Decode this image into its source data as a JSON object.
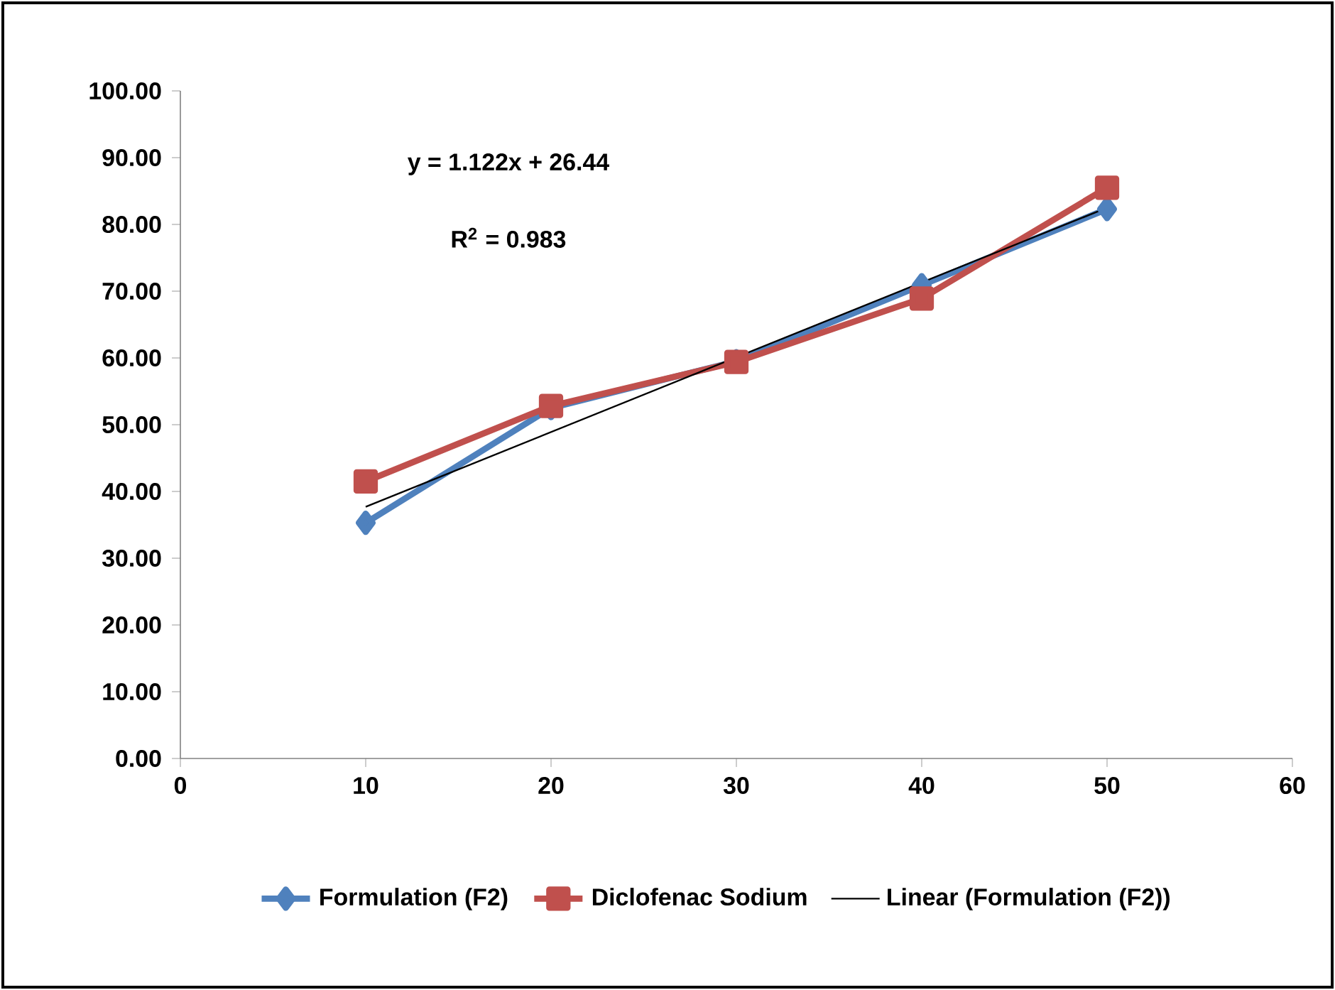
{
  "chart_data": {
    "type": "line",
    "xlim": [
      0,
      60
    ],
    "xticks": [
      0,
      10,
      20,
      30,
      40,
      50,
      60
    ],
    "ylim": [
      0,
      100
    ],
    "yticks": [
      {
        "value": 0,
        "label": "0.00"
      },
      {
        "value": 10,
        "label": "10.00"
      },
      {
        "value": 20,
        "label": "20.00"
      },
      {
        "value": 30,
        "label": "30.00"
      },
      {
        "value": 40,
        "label": "40.00"
      },
      {
        "value": 50,
        "label": "50.00"
      },
      {
        "value": 60,
        "label": "60.00"
      },
      {
        "value": 70,
        "label": "70.00"
      },
      {
        "value": 80,
        "label": "80.00"
      },
      {
        "value": 90,
        "label": "90.00"
      },
      {
        "value": 100,
        "label": "100.00"
      }
    ],
    "x": [
      10,
      20,
      30,
      40,
      50
    ],
    "series": [
      {
        "name": "Formulation (F2)",
        "color": "#4f81bd",
        "marker": "diamond",
        "values": [
          35.3,
          52.5,
          59.5,
          70.9,
          82.3
        ]
      },
      {
        "name": "Diclofenac Sodium",
        "color": "#c0504d",
        "marker": "square",
        "values": [
          41.5,
          52.8,
          59.4,
          68.9,
          85.5
        ]
      },
      {
        "name": "Linear (Formulation (F2))",
        "color": "#000000",
        "marker": "none",
        "x": [
          10,
          50
        ],
        "values": [
          37.7,
          82.5
        ]
      }
    ],
    "annotations": [
      "y = 1.122x + 26.44",
      "R$^{2}$ = 0.983"
    ],
    "legend": "bottom",
    "grid": false
  }
}
